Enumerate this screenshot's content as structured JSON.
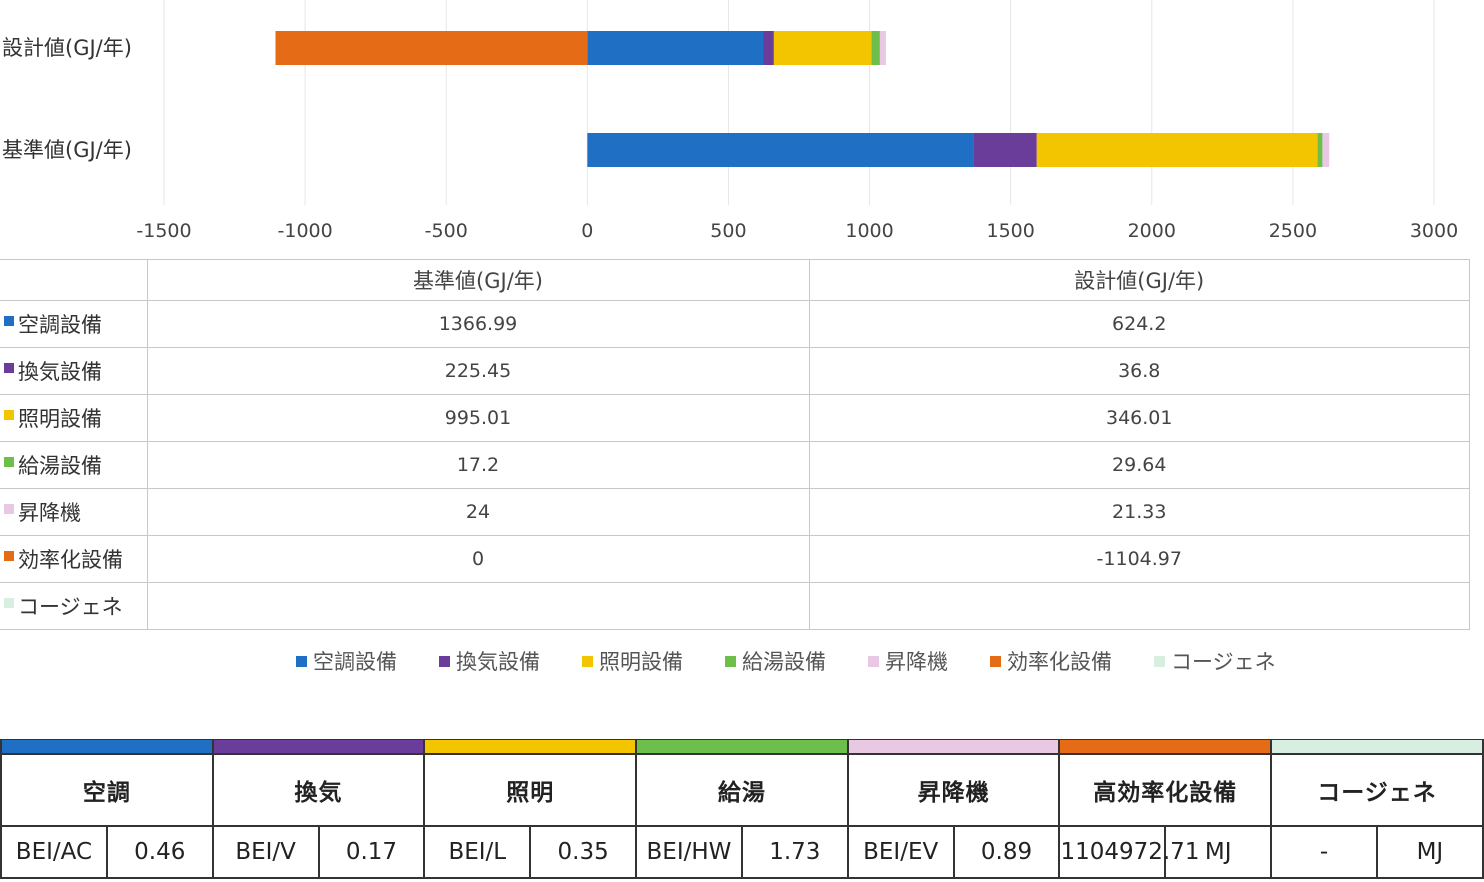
{
  "chart_data": {
    "type": "bar",
    "orientation": "horizontal",
    "stacked": true,
    "categories": [
      "設計値(GJ/年)",
      "基準値(GJ/年)"
    ],
    "xlim": [
      -1500,
      3000
    ],
    "xticks": [
      -1500,
      -1000,
      -500,
      0,
      500,
      1000,
      1500,
      2000,
      2500,
      3000
    ],
    "series": [
      {
        "name": "空調設備",
        "color": "#1f6fc5",
        "values": {
          "基準値(GJ/年)": 1366.99,
          "設計値(GJ/年)": 624.2
        }
      },
      {
        "name": "換気設備",
        "color": "#6a3d9a",
        "values": {
          "基準値(GJ/年)": 225.45,
          "設計値(GJ/年)": 36.8
        }
      },
      {
        "name": "照明設備",
        "color": "#f2c500",
        "values": {
          "基準値(GJ/年)": 995.01,
          "設計値(GJ/年)": 346.01
        }
      },
      {
        "name": "給湯設備",
        "color": "#6cbf4b",
        "values": {
          "基準値(GJ/年)": 17.2,
          "設計値(GJ/年)": 29.64
        }
      },
      {
        "name": "昇降機",
        "color": "#e9c8e3",
        "values": {
          "基準値(GJ/年)": 24,
          "設計値(GJ/年)": 21.33
        }
      },
      {
        "name": "効率化設備",
        "color": "#e66b17",
        "values": {
          "基準値(GJ/年)": 0,
          "設計値(GJ/年)": -1104.97
        }
      },
      {
        "name": "コージェネ",
        "color": "#d8eee0",
        "values": {
          "基準値(GJ/年)": null,
          "設計値(GJ/年)": null
        }
      }
    ],
    "grid": true,
    "legend": "bottom"
  },
  "table": {
    "headers": [
      "基準値(GJ/年)",
      "設計値(GJ/年)"
    ],
    "rows": [
      {
        "label": "空調設備",
        "color": "#1f6fc5",
        "base": "1366.99",
        "design": "624.2"
      },
      {
        "label": "換気設備",
        "color": "#6a3d9a",
        "base": "225.45",
        "design": "36.8"
      },
      {
        "label": "照明設備",
        "color": "#f2c500",
        "base": "995.01",
        "design": "346.01"
      },
      {
        "label": "給湯設備",
        "color": "#6cbf4b",
        "base": "17.2",
        "design": "29.64"
      },
      {
        "label": "昇降機",
        "color": "#e9c8e3",
        "base": "24",
        "design": "21.33"
      },
      {
        "label": "効率化設備",
        "color": "#e66b17",
        "base": "0",
        "design": "-1104.97"
      },
      {
        "label": "コージェネ",
        "color": "#d8eee0",
        "base": "",
        "design": ""
      }
    ]
  },
  "bei": {
    "columns": [
      {
        "head": "空調",
        "color": "#1f6fc5",
        "key": "BEI/AC",
        "value": "0.46"
      },
      {
        "head": "換気",
        "color": "#6a3d9a",
        "key": "BEI/V",
        "value": "0.17"
      },
      {
        "head": "照明",
        "color": "#f2c500",
        "key": "BEI/L",
        "value": "0.35"
      },
      {
        "head": "給湯",
        "color": "#6cbf4b",
        "key": "BEI/HW",
        "value": "1.73"
      },
      {
        "head": "昇降機",
        "color": "#e9c8e3",
        "key": "BEI/EV",
        "value": "0.89"
      },
      {
        "head": "高効率化設備",
        "color": "#e66b17",
        "key": "1104972.71",
        "value": "MJ"
      },
      {
        "head": "コージェネ",
        "color": "#d8eee0",
        "key": "-",
        "value": "MJ"
      }
    ]
  }
}
